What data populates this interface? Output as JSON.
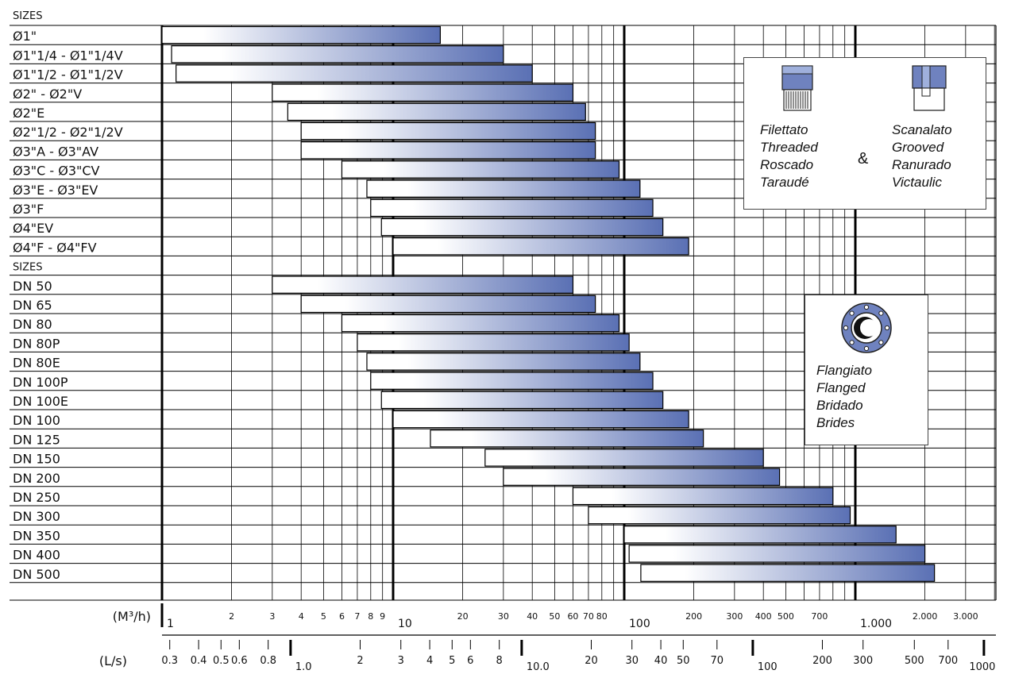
{
  "chart_data": {
    "type": "bar",
    "orientation": "horizontal",
    "scale": "log",
    "xlim": [
      1,
      4000
    ],
    "grid": true,
    "groups": [
      {
        "header": "SIZES",
        "rows": [
          {
            "label": "Ø1\"",
            "min": 1,
            "max": 16
          },
          {
            "label": "Ø1\"1/4 - Ø1\"1/4V",
            "min": 1.1,
            "max": 30
          },
          {
            "label": "Ø1\"1/2 - Ø1\"1/2V",
            "min": 1.15,
            "max": 40
          },
          {
            "label": "Ø2\" - Ø2\"V",
            "min": 3,
            "max": 60
          },
          {
            "label": "Ø2\"E",
            "min": 3.5,
            "max": 68
          },
          {
            "label": "Ø2\"1/2 - Ø2\"1/2V",
            "min": 4,
            "max": 75
          },
          {
            "label": "Ø3\"A - Ø3\"AV",
            "min": 4,
            "max": 75
          },
          {
            "label": "Ø3\"C - Ø3\"CV",
            "min": 6,
            "max": 95
          },
          {
            "label": "Ø3\"E - Ø3\"EV",
            "min": 7.7,
            "max": 117
          },
          {
            "label": "Ø3\"F",
            "min": 8,
            "max": 133
          },
          {
            "label": "Ø4\"EV",
            "min": 8.9,
            "max": 147
          },
          {
            "label": "Ø4\"F - Ø4\"FV",
            "min": 10,
            "max": 190
          }
        ]
      },
      {
        "header": "SIZES",
        "rows": [
          {
            "label": "DN 50",
            "min": 3,
            "max": 60
          },
          {
            "label": "DN 65",
            "min": 4,
            "max": 75
          },
          {
            "label": "DN 80",
            "min": 6,
            "max": 95
          },
          {
            "label": "DN 80P",
            "min": 7,
            "max": 105
          },
          {
            "label": "DN 80E",
            "min": 7.7,
            "max": 117
          },
          {
            "label": "DN 100P",
            "min": 8,
            "max": 133
          },
          {
            "label": "DN 100E",
            "min": 8.9,
            "max": 147
          },
          {
            "label": "DN 100",
            "min": 10,
            "max": 190
          },
          {
            "label": "DN 125",
            "min": 14.5,
            "max": 220
          },
          {
            "label": "DN 150",
            "min": 25,
            "max": 400
          },
          {
            "label": "DN 200",
            "min": 30,
            "max": 470
          },
          {
            "label": "DN 250",
            "min": 60,
            "max": 800
          },
          {
            "label": "DN 300",
            "min": 70,
            "max": 950
          },
          {
            "label": "DN 350",
            "min": 100,
            "max": 1500
          },
          {
            "label": "DN 400",
            "min": 105,
            "max": 2000
          },
          {
            "label": "DN 500",
            "min": 118,
            "max": 2200
          }
        ]
      }
    ],
    "axis_m3h": {
      "label": "(M³/h)",
      "ticks": [
        {
          "v": 1,
          "t": "1"
        },
        {
          "v": 2,
          "t": "2"
        },
        {
          "v": 3,
          "t": "3"
        },
        {
          "v": 4,
          "t": "4"
        },
        {
          "v": 5,
          "t": "5"
        },
        {
          "v": 6,
          "t": "6"
        },
        {
          "v": 7,
          "t": "7"
        },
        {
          "v": 8,
          "t": "8"
        },
        {
          "v": 9,
          "t": "9"
        },
        {
          "v": 10,
          "t": "10"
        },
        {
          "v": 20,
          "t": "20"
        },
        {
          "v": 30,
          "t": "30"
        },
        {
          "v": 40,
          "t": "40"
        },
        {
          "v": 50,
          "t": "50"
        },
        {
          "v": 60,
          "t": "60"
        },
        {
          "v": 70,
          "t": "70"
        },
        {
          "v": 80,
          "t": "80"
        },
        {
          "v": 100,
          "t": "100"
        },
        {
          "v": 200,
          "t": "200"
        },
        {
          "v": 300,
          "t": "300"
        },
        {
          "v": 400,
          "t": "400"
        },
        {
          "v": 500,
          "t": "500"
        },
        {
          "v": 700,
          "t": "700"
        },
        {
          "v": 1000,
          "t": "1.000"
        },
        {
          "v": 2000,
          "t": "2.000"
        },
        {
          "v": 3000,
          "t": "3.000"
        }
      ]
    },
    "axis_ls": {
      "label": "(L/s)",
      "ticks": [
        {
          "v": 0.3,
          "t": "0.3"
        },
        {
          "v": 0.4,
          "t": "0.4"
        },
        {
          "v": 0.5,
          "t": "0.5"
        },
        {
          "v": 0.6,
          "t": "0.6"
        },
        {
          "v": 0.8,
          "t": "0.8"
        },
        {
          "v": 1,
          "t": "1.0"
        },
        {
          "v": 2,
          "t": "2"
        },
        {
          "v": 3,
          "t": "3"
        },
        {
          "v": 4,
          "t": "4"
        },
        {
          "v": 5,
          "t": "5"
        },
        {
          "v": 6,
          "t": "6"
        },
        {
          "v": 8,
          "t": "8"
        },
        {
          "v": 10,
          "t": "10.0"
        },
        {
          "v": 20,
          "t": "20"
        },
        {
          "v": 30,
          "t": "30"
        },
        {
          "v": 40,
          "t": "40"
        },
        {
          "v": 50,
          "t": "50"
        },
        {
          "v": 70,
          "t": "70"
        },
        {
          "v": 100,
          "t": "100"
        },
        {
          "v": 200,
          "t": "200"
        },
        {
          "v": 300,
          "t": "300"
        },
        {
          "v": 500,
          "t": "500"
        },
        {
          "v": 700,
          "t": "700"
        },
        {
          "v": 1000,
          "t": "1000"
        }
      ]
    }
  },
  "legend_threaded": {
    "left_lines": [
      "Filettato",
      "Threaded",
      "Roscado",
      "Taraudé"
    ],
    "amp": "&",
    "right_lines": [
      "Scanalato",
      "Grooved",
      "Ranurado",
      "Victaulic"
    ]
  },
  "legend_flanged": {
    "lines": [
      "Flangiato",
      "Flanged",
      "Bridado",
      "Brides"
    ]
  },
  "colors": {
    "bar_start": "#ffffff",
    "bar_end": "#5a70b4",
    "grid": "#000000"
  }
}
